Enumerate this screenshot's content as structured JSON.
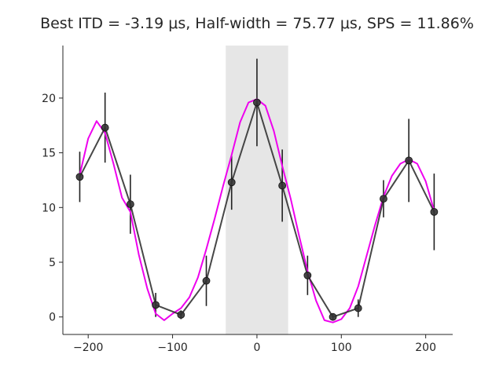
{
  "chart_data": {
    "type": "line",
    "title": "Best ITD = -3.19 μs, Half-width = 75.77 μs, SPS = 11.86%",
    "xlabel": "",
    "ylabel": "",
    "xlim": [
      -230,
      232
    ],
    "ylim": [
      -1.6,
      24.8
    ],
    "x_ticks": [
      -200,
      -100,
      0,
      100,
      200
    ],
    "x_tick_labels": [
      "−200",
      "−100",
      "0",
      "100",
      "200"
    ],
    "y_ticks": [
      0,
      5,
      10,
      15,
      20
    ],
    "y_tick_labels": [
      "0",
      "5",
      "10",
      "15",
      "20"
    ],
    "grid": false,
    "shaded_band": {
      "x_start": -37,
      "x_end": 37,
      "color": "#e6e6e6"
    },
    "colors": {
      "data": "#333333",
      "errorbar": "#222222",
      "fit": "#ee00ee",
      "band": "#e6e6e6"
    },
    "series": [
      {
        "x": [
          -210,
          -180,
          -150,
          -120,
          -90,
          -60,
          -30,
          0,
          30,
          60,
          90,
          120,
          150,
          180,
          210
        ],
        "y": [
          12.8,
          17.3,
          10.3,
          1.1,
          0.2,
          3.3,
          12.3,
          19.6,
          12.0,
          3.8,
          0.0,
          0.8,
          10.8,
          14.3,
          9.6
        ],
        "yerr": [
          2.3,
          3.2,
          2.7,
          1.1,
          0.4,
          2.3,
          2.5,
          4.0,
          3.3,
          1.8,
          0.3,
          0.8,
          1.7,
          3.8,
          3.5
        ]
      },
      {
        "x": [
          -210,
          -200,
          -190,
          -180,
          -170,
          -160,
          -150,
          -140,
          -130,
          -120,
          -110,
          -100,
          -90,
          -80,
          -70,
          -60,
          -50,
          -40,
          -30,
          -20,
          -10,
          0,
          10,
          20,
          30,
          40,
          50,
          60,
          70,
          80,
          90,
          100,
          110,
          120,
          130,
          140,
          150,
          160,
          170,
          180,
          190,
          200,
          210
        ],
        "y": [
          13.0,
          16.3,
          17.9,
          16.8,
          14.0,
          10.9,
          9.6,
          5.7,
          2.6,
          0.3,
          -0.3,
          0.3,
          0.8,
          1.8,
          3.6,
          6.2,
          9.0,
          12.0,
          14.8,
          17.8,
          19.6,
          19.9,
          19.3,
          17.0,
          13.8,
          10.8,
          7.4,
          4.2,
          1.5,
          -0.3,
          -0.5,
          -0.2,
          0.8,
          2.8,
          5.6,
          8.4,
          11.0,
          12.9,
          14.0,
          14.4,
          14.0,
          12.4,
          9.7
        ]
      }
    ]
  }
}
